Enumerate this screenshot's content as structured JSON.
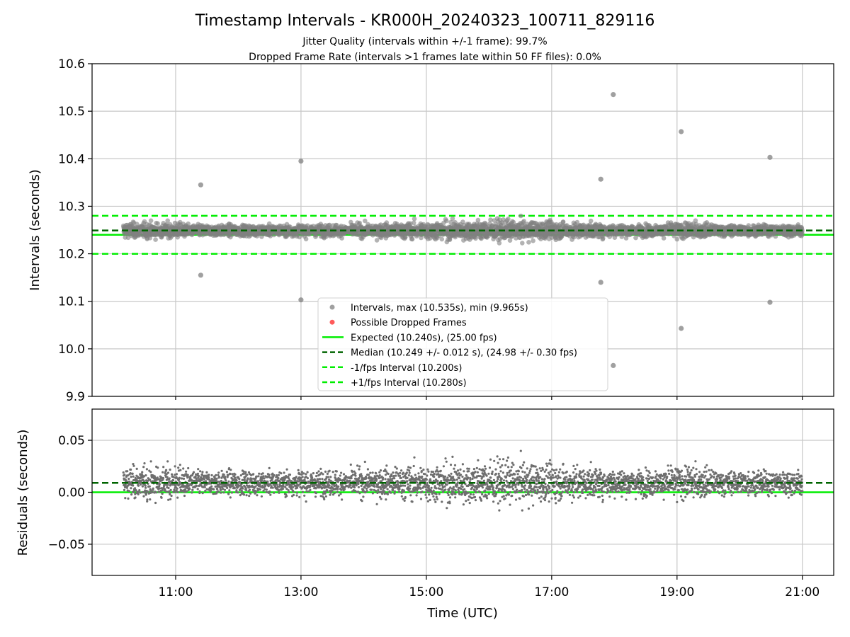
{
  "chart_data": {
    "type": "scatter",
    "title": "Timestamp Intervals - KR000H_20240323_100711_829116",
    "subtitle_lines": [
      "Jitter Quality (intervals within +/-1 frame): 99.7%",
      "Dropped Frame Rate (intervals >1 frames late within 50 FF files): 0.0%"
    ],
    "xlabel": "Time (UTC)",
    "x_time_range": [
      "10:10",
      "21:00"
    ],
    "xlim": [
      "09:40",
      "21:30"
    ],
    "x_ticks": [
      "11:00",
      "13:00",
      "15:00",
      "17:00",
      "19:00",
      "21:00"
    ],
    "grid": true,
    "colors": {
      "intervals": "#808080",
      "dropped": "#ff0000",
      "expected": "#00ee00",
      "median": "#006400",
      "bounds": "#00ee00",
      "grid": "#c8c8c8"
    },
    "top": {
      "ylabel": "Intervals (seconds)",
      "ylim": [
        9.9,
        10.6
      ],
      "y_ticks": [
        "10.6",
        "10.5",
        "10.4",
        "10.3",
        "10.2",
        "10.1",
        "10.0",
        "9.9"
      ],
      "expected": 10.24,
      "median": 10.249,
      "lower": 10.2,
      "upper": 10.28,
      "outliers": [
        {
          "t": "11:24",
          "v": 10.345
        },
        {
          "t": "11:24",
          "v": 10.155
        },
        {
          "t": "13:00",
          "v": 10.395
        },
        {
          "t": "13:00",
          "v": 10.103
        },
        {
          "t": "17:47",
          "v": 10.357
        },
        {
          "t": "17:47",
          "v": 10.14
        },
        {
          "t": "17:59",
          "v": 10.535
        },
        {
          "t": "17:59",
          "v": 9.965
        },
        {
          "t": "19:04",
          "v": 10.457
        },
        {
          "t": "19:04",
          "v": 10.043
        },
        {
          "t": "20:29",
          "v": 10.403
        },
        {
          "t": "20:29",
          "v": 10.098
        }
      ]
    },
    "bottom": {
      "ylabel": "Residuals (seconds)",
      "ylim": [
        -0.08,
        0.08
      ],
      "y_ticks": [
        "0.05",
        "0.00",
        "−0.05"
      ],
      "expected": 0.0,
      "median": 0.009
    },
    "legend": {
      "position": "lower-center",
      "entries": [
        {
          "label": "Intervals, max (10.535s), min (9.965s)",
          "marker": "dot",
          "color": "#a0a0a0"
        },
        {
          "label": "Possible Dropped Frames",
          "marker": "dot",
          "color": "#ff5a5a"
        },
        {
          "label": "Expected (10.240s), (25.00 fps)",
          "marker": "line",
          "color": "#00ee00"
        },
        {
          "label": "Median (10.249 +/- 0.012 s), (24.98 +/- 0.30 fps)",
          "marker": "dash",
          "color": "#006400"
        },
        {
          "label": "-1/fps Interval (10.200s)",
          "marker": "dash",
          "color": "#00ee00"
        },
        {
          "label": "+1/fps Interval (10.280s)",
          "marker": "dash",
          "color": "#00ee00"
        }
      ]
    }
  }
}
